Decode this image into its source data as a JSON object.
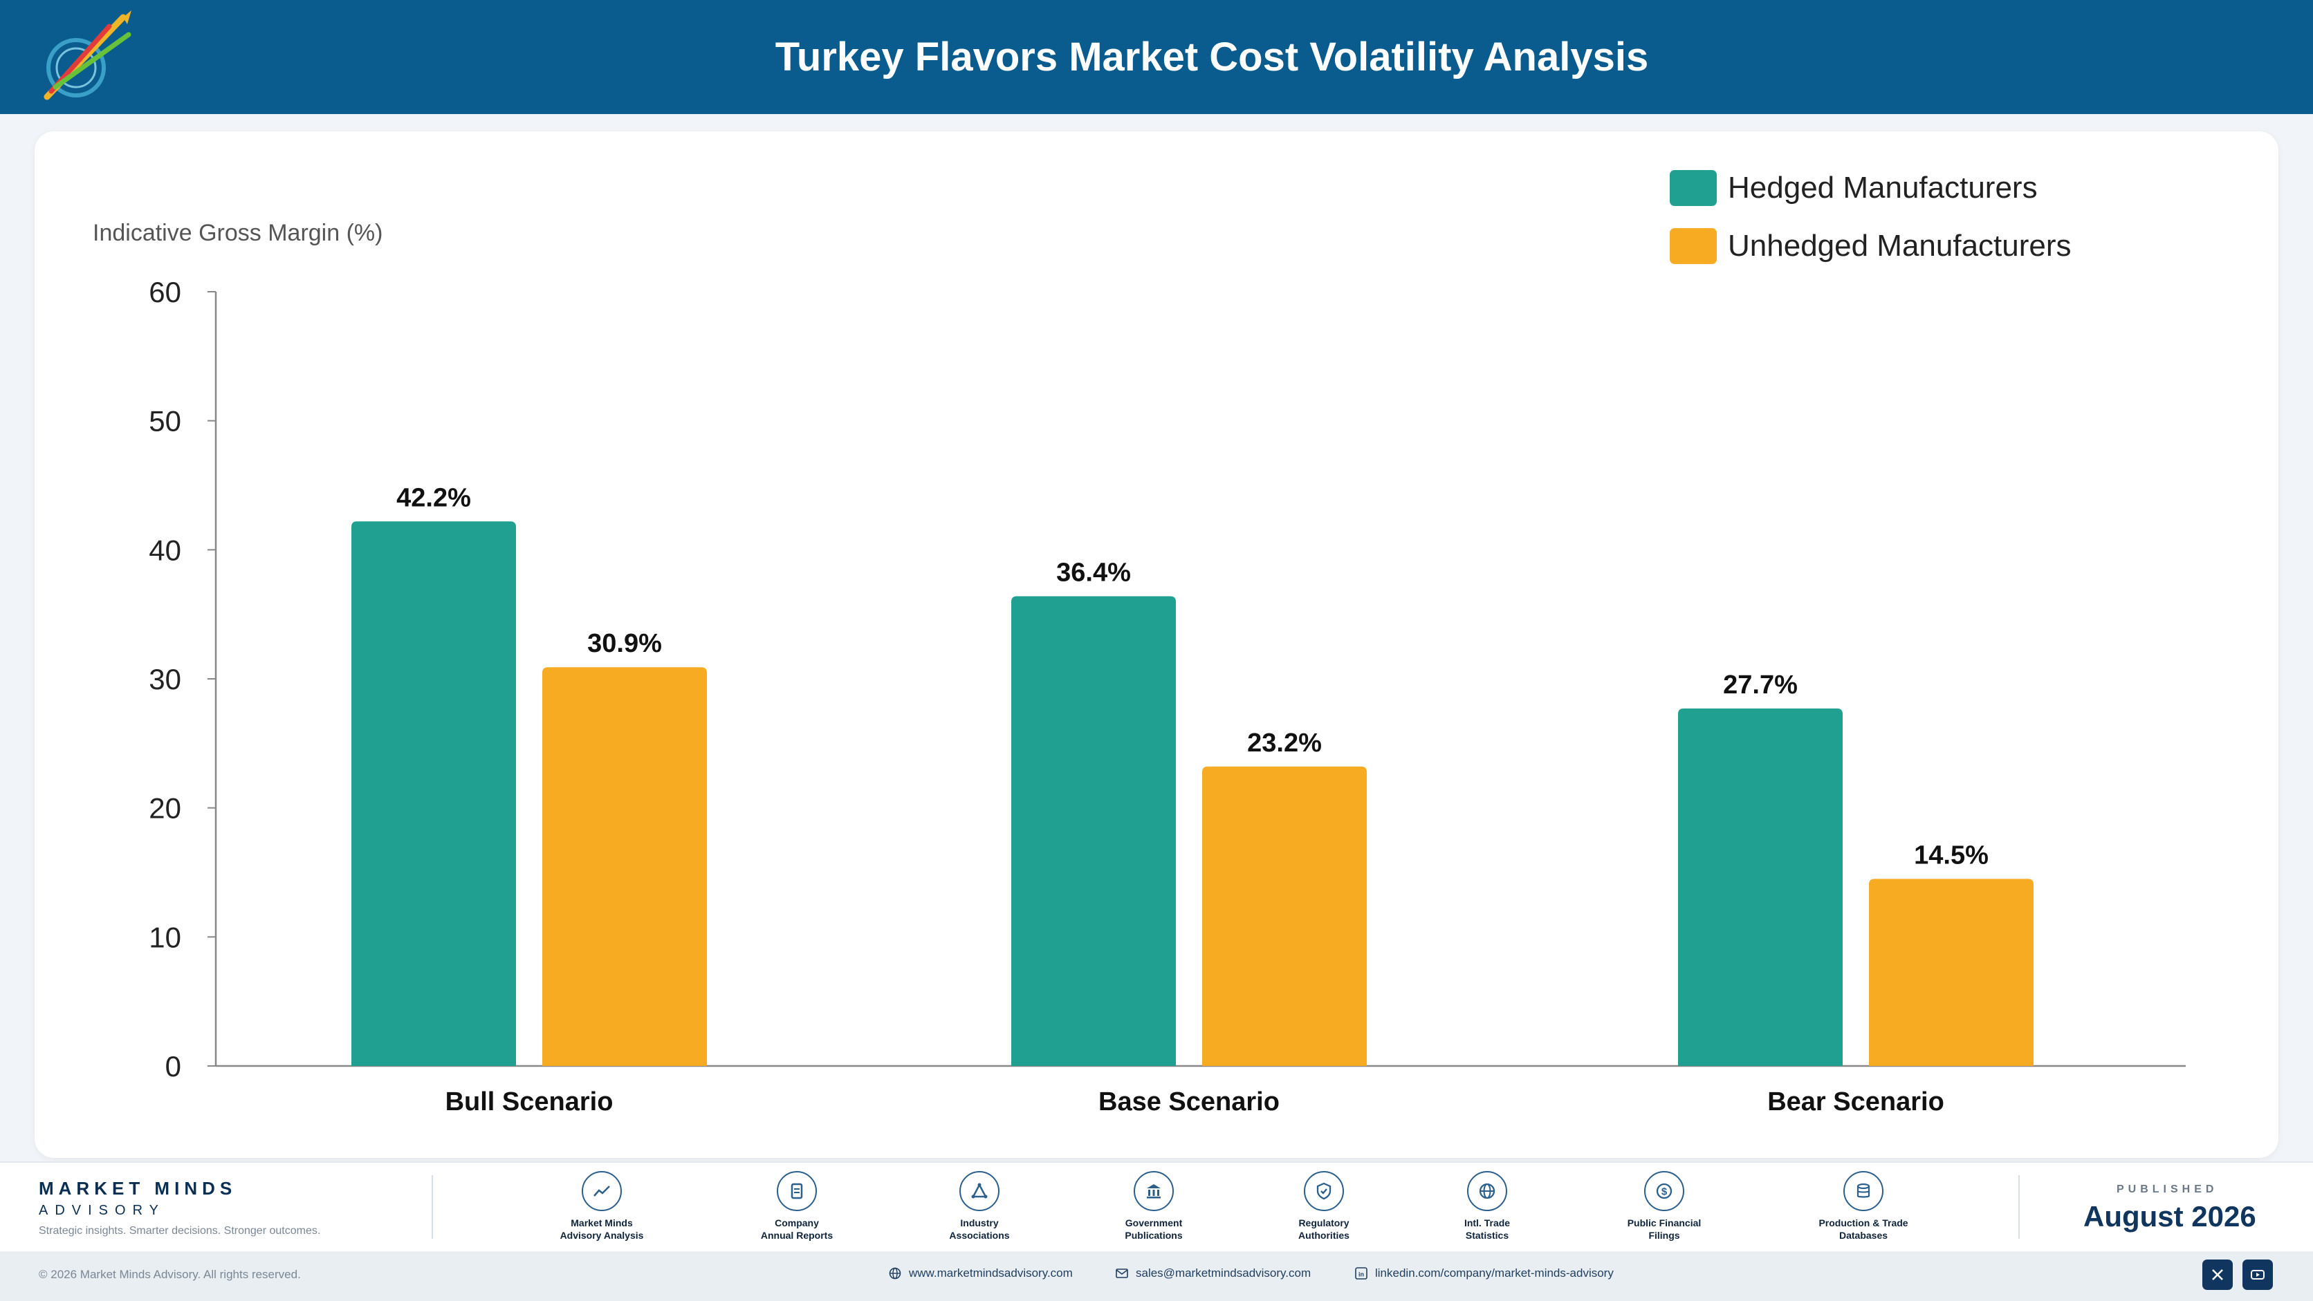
{
  "header": {
    "title": "Turkey Flavors Market Cost Volatility Analysis"
  },
  "colors": {
    "header_bg": "#0a5c8e",
    "hedged": "#20a090",
    "unhedged": "#f7ab22"
  },
  "chart_data": {
    "type": "bar",
    "title": "Turkey Flavors Market Cost Volatility Analysis",
    "ylabel": "Indicative Gross Margin (%)",
    "xlabel": "",
    "ylim": [
      0,
      60
    ],
    "yticks": [
      0,
      10,
      20,
      30,
      40,
      50,
      60
    ],
    "categories": [
      "Bull Scenario",
      "Base Scenario",
      "Bear Scenario"
    ],
    "series": [
      {
        "name": "Hedged Manufacturers",
        "color": "#20a090",
        "values": [
          42.2,
          36.4,
          27.7
        ],
        "labels": [
          "42.2%",
          "36.4%",
          "27.7%"
        ]
      },
      {
        "name": "Unhedged Manufacturers",
        "color": "#f7ab22",
        "values": [
          30.9,
          23.2,
          14.5
        ],
        "labels": [
          "30.9%",
          "23.2%",
          "14.5%"
        ]
      }
    ],
    "legend_position": "top-right",
    "grid": false
  },
  "footer": {
    "brand_name": "MARKET MINDS",
    "brand_sub": "ADVISORY",
    "tagline": "Strategic insights. Smarter decisions. Stronger outcomes.",
    "sources": [
      {
        "label": "Market Minds\nAdvisory Analysis",
        "icon": "trend-chart-icon"
      },
      {
        "label": "Company\nAnnual Reports",
        "icon": "document-icon"
      },
      {
        "label": "Industry\nAssociations",
        "icon": "network-icon"
      },
      {
        "label": "Government\nPublications",
        "icon": "government-building-icon"
      },
      {
        "label": "Regulatory\nAuthorities",
        "icon": "shield-check-icon"
      },
      {
        "label": "Intl. Trade\nStatistics",
        "icon": "globe-icon"
      },
      {
        "label": "Public Financial\nFilings",
        "icon": "dollar-coin-icon"
      },
      {
        "label": "Production & Trade\nDatabases",
        "icon": "database-icon"
      }
    ],
    "published_label": "PUBLISHED",
    "published_date": "August 2026"
  },
  "bottom_bar": {
    "copyright": "© 2026 Market Minds Advisory. All rights reserved.",
    "website": "www.marketmindsadvisory.com",
    "email": "sales@marketmindsadvisory.com",
    "linkedin": "linkedin.com/company/market-minds-advisory"
  }
}
